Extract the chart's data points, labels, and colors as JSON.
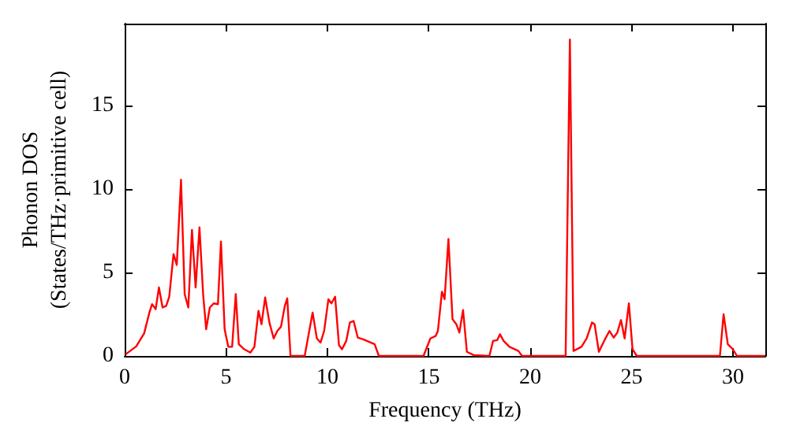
{
  "chart_data": {
    "type": "line",
    "xlabel": "Frequency (THz)",
    "ylabel": "Phonon DOS\n(States/THz·primitive cell)",
    "xlim": [
      0,
      31.6
    ],
    "xticks": [
      0,
      5,
      10,
      15,
      20,
      25,
      30
    ],
    "ylim": [
      0,
      19.9
    ],
    "yticks": [
      0,
      5,
      10,
      15
    ],
    "grid": false,
    "legend": false,
    "marker": "none",
    "line_style": "solid",
    "x": [
      0.05,
      0.57,
      0.96,
      1.22,
      1.35,
      1.53,
      1.69,
      1.87,
      2.05,
      2.2,
      2.41,
      2.57,
      2.78,
      2.96,
      3.14,
      3.32,
      3.5,
      3.69,
      3.87,
      4.02,
      4.2,
      4.39,
      4.6,
      4.75,
      4.93,
      5.11,
      5.3,
      5.48,
      5.63,
      5.9,
      6.2,
      6.4,
      6.6,
      6.75,
      6.93,
      7.14,
      7.35,
      7.53,
      7.71,
      7.9,
      8.02,
      8.18,
      8.88,
      9.27,
      9.48,
      9.66,
      9.84,
      10.05,
      10.2,
      10.38,
      10.57,
      10.72,
      10.93,
      11.11,
      11.29,
      11.5,
      11.81,
      12.15,
      12.33,
      12.54,
      14.74,
      15.08,
      15.34,
      15.45,
      15.65,
      15.78,
      15.97,
      16.17,
      16.36,
      16.51,
      16.69,
      16.88,
      17.21,
      17.99,
      18.17,
      18.38,
      18.51,
      18.69,
      18.98,
      19.42,
      19.6,
      21.75,
      21.96,
      22.14,
      22.53,
      22.79,
      23.05,
      23.18,
      23.39,
      23.65,
      23.91,
      24.12,
      24.3,
      24.48,
      24.66,
      24.87,
      25.05,
      25.26,
      29.36,
      29.54,
      29.75,
      30.0,
      30.2,
      31.6
    ],
    "series": [
      {
        "color": "#ff0000",
        "values": [
          0.1,
          0.57,
          1.35,
          2.6,
          3.1,
          2.8,
          4.1,
          2.9,
          3.0,
          3.55,
          6.1,
          5.45,
          10.55,
          3.7,
          2.9,
          7.55,
          4.1,
          7.7,
          3.7,
          1.6,
          2.9,
          3.15,
          3.1,
          6.85,
          1.6,
          0.55,
          0.55,
          3.7,
          0.7,
          0.4,
          0.2,
          0.55,
          2.7,
          1.9,
          3.5,
          2.0,
          1.05,
          1.5,
          1.75,
          3.0,
          3.45,
          0,
          0,
          2.6,
          1.05,
          0.8,
          1.5,
          3.4,
          3.15,
          3.55,
          0.65,
          0.4,
          0.9,
          2.0,
          2.1,
          1.1,
          0.97,
          0.8,
          0.7,
          0,
          0,
          1.05,
          1.2,
          1.5,
          3.85,
          3.4,
          7.0,
          2.2,
          1.9,
          1.4,
          2.75,
          0.25,
          0.05,
          0,
          0.9,
          0.95,
          1.3,
          0.9,
          0.55,
          0.3,
          0,
          0,
          18.95,
          0.3,
          0.55,
          1.05,
          2.0,
          1.9,
          0.25,
          0.9,
          1.5,
          1.1,
          1.4,
          2.15,
          1.05,
          3.15,
          0.4,
          0,
          0,
          2.5,
          0.7,
          0.4,
          0,
          0
        ]
      }
    ]
  }
}
